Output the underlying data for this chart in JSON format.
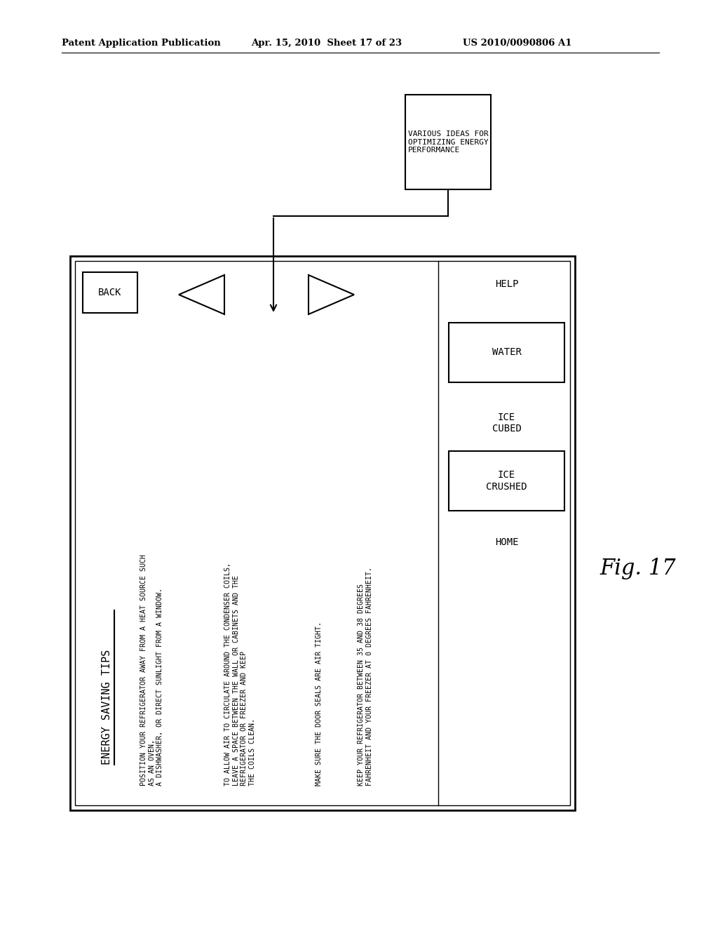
{
  "bg_color": "#ffffff",
  "header_left": "Patent Application Publication",
  "header_mid": "Apr. 15, 2010  Sheet 17 of 23",
  "header_right": "US 2010/0090806 A1",
  "fig_label": "Fig. 17",
  "top_box_text": "VARIOUS IDEAS FOR\nOPTIMIZING ENERGY\nPERFORMANCE",
  "title_text": "ENERGY SAVING TIPS",
  "back_label": "BACK",
  "help_label": "HELP",
  "home_label": "HOME",
  "ice_crushed_label": "ICE\nCRUSHED",
  "ice_cubed_label": "ICE\nCUBED",
  "water_label": "WATER",
  "tip1": "POSITION YOUR REFRIGERATOR AWAY FROM A HEAT SOURCE SUCH\nAS AN OVEN,\nA DISHWASHER, OR DIRECT SUNLIGHT FROM A WINDOW.",
  "tip2": "TO ALLOW AIR TO CIRCULATE AROUND THE CONDENSER COILS,\nLEAVE A SPACE BETWEEN THE WALL OR CABINETS AND THE\nREFRIGERATOR OR FREEZER AND KEEP\nTHE COILS CLEAN.",
  "tip3": "MAKE SURE THE DOOR SEALS ARE AIR TIGHT.",
  "tip4": "KEEP YOUR REFRIGERATOR BETWEEN 35 AND 38 DEGREES\nFAHRENHEIT AND YOUR FREEZER AT 0 DEGREES FAHRENHEIT."
}
